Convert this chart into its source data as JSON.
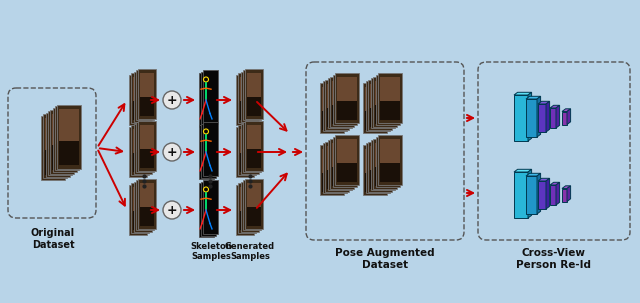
{
  "bg_color": "#b8d4e8",
  "labels": {
    "original_dataset": "Original\nDataset",
    "skeleton_samples": "Skeleton\nSamples",
    "generated_samples": "Generated\nSamples",
    "pose_augmented": "Pose Augmented\nDataset",
    "cross_view": "Cross-View\nPerson Re-Id"
  },
  "arrow_color": "#cc0000",
  "dashed_box_color": "#555555",
  "dots_color": "#333333",
  "person_face": "#4a3520",
  "person_edge": "#888888",
  "skeleton_bg": "#080808",
  "gen_face": "#4a3520",
  "gen_edge": "#888888"
}
